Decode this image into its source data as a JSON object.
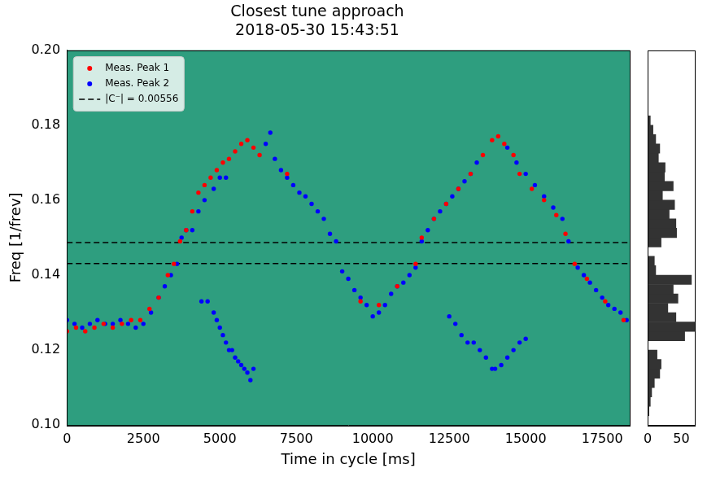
{
  "chart_data": [
    {
      "type": "scatter",
      "title": "Closest tune approach",
      "subtitle": "2018-05-30 15:43:51",
      "x_label": "Time in cycle [ms]",
      "y_label": "Freq [1/frev]",
      "xlim": [
        0,
        18400
      ],
      "xticks": [
        0,
        2500,
        5000,
        7500,
        10000,
        12500,
        15000,
        17500
      ],
      "ylim": [
        0.1,
        0.2
      ],
      "yticks": [
        {
          "value": 0.1,
          "label": "0.10"
        },
        0.12,
        0.14,
        0.16,
        0.18,
        {
          "value": 0.2,
          "label": "0.20"
        }
      ],
      "grid": false,
      "legend": "upper left",
      "series": [
        {
          "name": "Meas. Peak 1",
          "color": "#ff0000",
          "marker": "circle",
          "x": [
            0,
            300,
            600,
            900,
            1200,
            1500,
            1800,
            2100,
            2400,
            2700,
            3000,
            3300,
            3500,
            3700,
            3900,
            4100,
            4300,
            4500,
            4700,
            4900,
            5100,
            5300,
            5500,
            5700,
            5900,
            6100,
            6300,
            7200,
            9600,
            10200,
            10800,
            11400,
            11600,
            12000,
            12400,
            12800,
            13200,
            13600,
            13900,
            14100,
            14300,
            14600,
            14800,
            15200,
            15600,
            16000,
            16300,
            16600,
            17000,
            17600,
            18200
          ],
          "values": [
            0.125,
            0.126,
            0.125,
            0.126,
            0.127,
            0.126,
            0.127,
            0.128,
            0.128,
            0.131,
            0.134,
            0.14,
            0.143,
            0.149,
            0.152,
            0.157,
            0.162,
            0.164,
            0.166,
            0.168,
            0.17,
            0.171,
            0.173,
            0.175,
            0.176,
            0.174,
            0.172,
            0.167,
            0.133,
            0.132,
            0.137,
            0.143,
            0.15,
            0.155,
            0.159,
            0.163,
            0.167,
            0.172,
            0.176,
            0.177,
            0.175,
            0.172,
            0.167,
            0.163,
            0.16,
            0.156,
            0.151,
            0.143,
            0.139,
            0.133,
            0.128
          ]
        },
        {
          "name": "Meas. Peak 2",
          "color": "#0000ff",
          "marker": "circle",
          "x": [
            0,
            250,
            500,
            750,
            1000,
            1250,
            1500,
            1750,
            2000,
            2250,
            2500,
            2750,
            3000,
            3200,
            3400,
            3600,
            3750,
            3900,
            4100,
            4300,
            4500,
            4800,
            5000,
            5200,
            6500,
            6650,
            6800,
            7000,
            7200,
            7400,
            7600,
            7800,
            8000,
            8200,
            8400,
            8600,
            8800,
            9000,
            9200,
            9400,
            9600,
            9800,
            10000,
            10200,
            10400,
            10600,
            10800,
            11000,
            11200,
            11400,
            11600,
            11800,
            12000,
            12200,
            12400,
            12600,
            12800,
            13000,
            13200,
            13400,
            14400,
            14700,
            15000,
            15300,
            15600,
            15900,
            16200,
            16400,
            16700,
            16900,
            17100,
            17300,
            17500,
            17700,
            17900,
            18100,
            18300,
            4400,
            4600,
            4800,
            4900,
            5000,
            5100,
            5200,
            5300,
            5400,
            5500,
            5600,
            5700,
            5800,
            5900,
            6000,
            6100,
            12500,
            12700,
            12900,
            13100,
            13300,
            13500,
            13700,
            13900,
            14000,
            14200,
            14400,
            14600,
            14800,
            15000
          ],
          "values": [
            0.128,
            0.127,
            0.126,
            0.127,
            0.128,
            0.127,
            0.127,
            0.128,
            0.127,
            0.126,
            0.127,
            0.13,
            0.134,
            0.137,
            0.14,
            0.143,
            0.15,
            0.152,
            0.152,
            0.157,
            0.16,
            0.163,
            0.166,
            0.166,
            0.175,
            0.178,
            0.171,
            0.168,
            0.166,
            0.164,
            0.162,
            0.161,
            0.159,
            0.157,
            0.155,
            0.151,
            0.149,
            0.141,
            0.139,
            0.136,
            0.134,
            0.132,
            0.129,
            0.13,
            0.132,
            0.135,
            0.137,
            0.138,
            0.14,
            0.142,
            0.149,
            0.152,
            0.155,
            0.157,
            0.159,
            0.161,
            0.163,
            0.165,
            0.167,
            0.17,
            0.174,
            0.17,
            0.167,
            0.164,
            0.161,
            0.158,
            0.155,
            0.149,
            0.142,
            0.14,
            0.138,
            0.136,
            0.134,
            0.132,
            0.131,
            0.13,
            0.128,
            0.133,
            0.133,
            0.13,
            0.128,
            0.126,
            0.124,
            0.122,
            0.12,
            0.12,
            0.118,
            0.117,
            0.116,
            0.115,
            0.114,
            0.112,
            0.115,
            0.129,
            0.127,
            0.124,
            0.122,
            0.122,
            0.12,
            0.118,
            0.115,
            0.115,
            0.116,
            0.118,
            0.12,
            0.122,
            0.123
          ]
        },
        {
          "name": "|C⁻| = 0.00556",
          "color": "#000000",
          "type": "hline",
          "line_style": "dashed",
          "values": [
            0.1487,
            0.1431
          ]
        }
      ]
    },
    {
      "type": "histogram",
      "orientation": "horizontal",
      "color": "#333333",
      "tick_labels": "x",
      "xlim": [
        0,
        70
      ],
      "xticks": [
        0,
        50
      ],
      "ylim": [
        0.1,
        0.2
      ],
      "bins": [
        0.1025,
        0.105,
        0.1075,
        0.11,
        0.1125,
        0.115,
        0.1175,
        0.12,
        0.1225,
        0.125,
        0.1275,
        0.13,
        0.1325,
        0.135,
        0.1375,
        0.14,
        0.1425,
        0.145,
        0.1475,
        0.15,
        0.1525,
        0.155,
        0.1575,
        0.16,
        0.1625,
        0.165,
        0.1675,
        0.17,
        0.1725,
        0.175,
        0.1775,
        0.18,
        0.1825
      ],
      "counts": [
        2,
        4,
        6,
        10,
        18,
        20,
        14,
        0,
        55,
        70,
        42,
        30,
        45,
        38,
        65,
        12,
        10,
        0,
        20,
        43,
        42,
        32,
        40,
        22,
        38,
        25,
        26,
        16,
        18,
        12,
        8,
        4
      ]
    }
  ]
}
